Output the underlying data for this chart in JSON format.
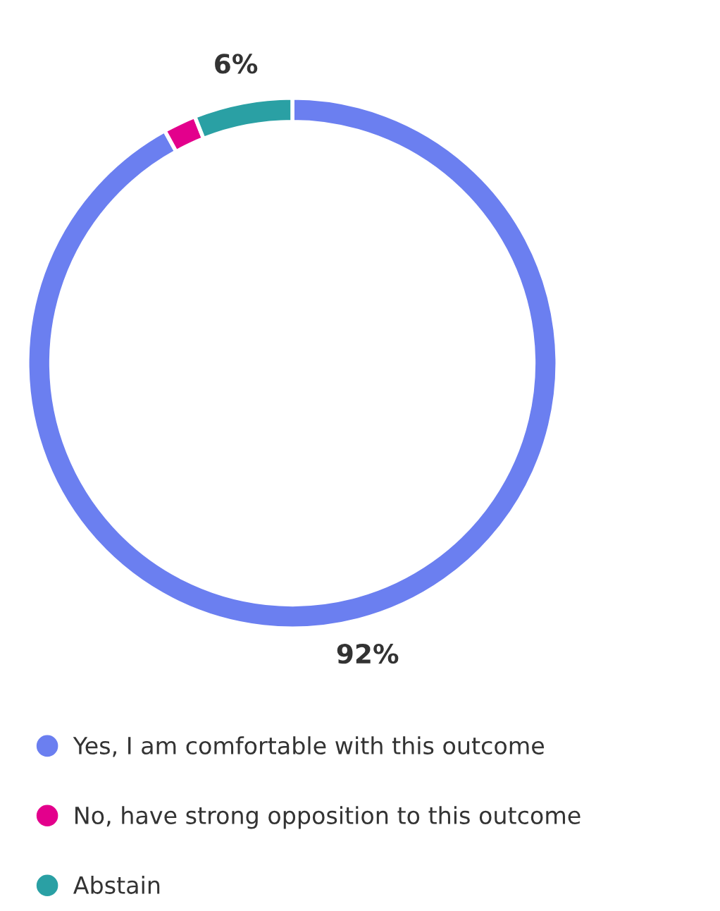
{
  "chart_data": {
    "type": "donut",
    "categories": [
      "Yes, I am comfortable with this outcome",
      "No, have strong opposition to this outcome",
      "Abstain"
    ],
    "values": [
      92,
      2,
      6
    ],
    "colors": [
      "#6b7ff0",
      "#e3008c",
      "#2aa0a4"
    ],
    "value_labels": [
      "92%",
      null,
      "6%"
    ],
    "legend": "bottom"
  }
}
